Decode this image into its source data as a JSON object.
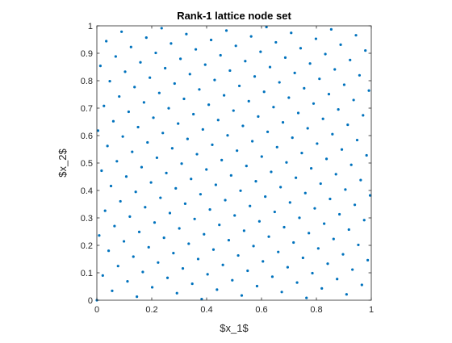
{
  "chart_data": {
    "type": "scatter",
    "title": "Rank-1 lattice node set",
    "xlabel": "$x_1$",
    "ylabel": "$x_2$",
    "xlim": [
      0,
      1
    ],
    "ylim": [
      0,
      1
    ],
    "xticks": [
      "0",
      "0.2",
      "0.4",
      "0.6",
      "0.8",
      "1"
    ],
    "yticks": [
      "0",
      "0.1",
      "0.2",
      "0.3",
      "0.4",
      "0.5",
      "0.6",
      "0.7",
      "0.8",
      "0.9",
      "1"
    ],
    "grid": false,
    "legend": "none",
    "marker_color": "#0072bd",
    "lattice": {
      "n": 233,
      "generating_vector": [
        1,
        144
      ]
    }
  }
}
